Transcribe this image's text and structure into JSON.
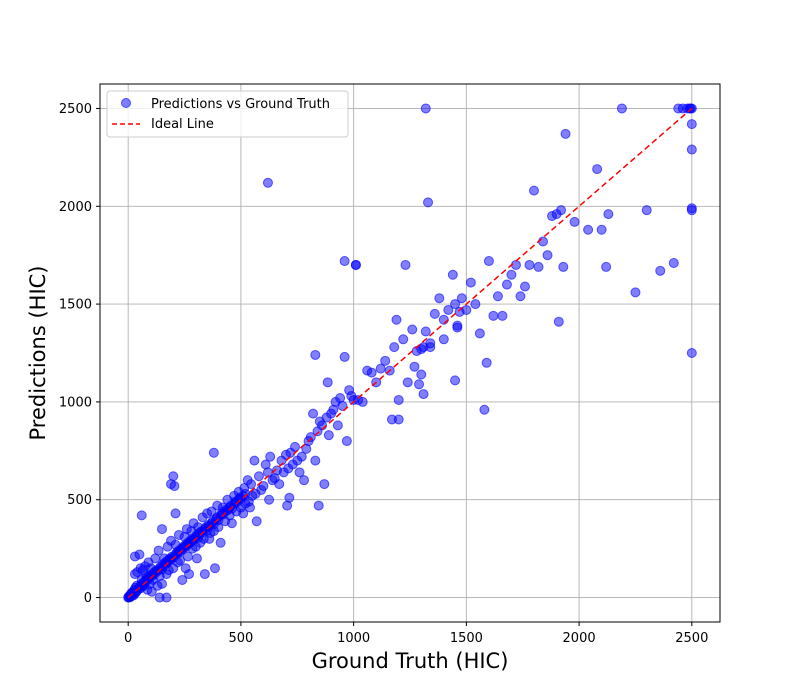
{
  "chart_data": {
    "type": "scatter",
    "xlabel": "Ground Truth (HIC)",
    "ylabel": "Predictions (HIC)",
    "xlim": [
      -125,
      2625
    ],
    "ylim": [
      -125,
      2625
    ],
    "xticks": [
      0,
      500,
      1000,
      1500,
      2000,
      2500
    ],
    "yticks": [
      0,
      500,
      1000,
      1500,
      2000,
      2500
    ],
    "grid": true,
    "legend_position": "top-left",
    "colors": {
      "points": "#0000ff",
      "ideal_line": "#ff0000",
      "grid": "#b0b0b0"
    },
    "ideal_line": {
      "name": "Ideal Line",
      "x": [
        0,
        2500
      ],
      "y": [
        0,
        2500
      ]
    },
    "series": [
      {
        "name": "Predictions vs Ground Truth",
        "points": [
          [
            0,
            0
          ],
          [
            2,
            5
          ],
          [
            5,
            0
          ],
          [
            8,
            10
          ],
          [
            10,
            3
          ],
          [
            12,
            20
          ],
          [
            15,
            8
          ],
          [
            18,
            25
          ],
          [
            20,
            15
          ],
          [
            22,
            30
          ],
          [
            25,
            12
          ],
          [
            28,
            40
          ],
          [
            30,
            22
          ],
          [
            32,
            50
          ],
          [
            35,
            28
          ],
          [
            38,
            60
          ],
          [
            40,
            35
          ],
          [
            45,
            45
          ],
          [
            50,
            55
          ],
          [
            55,
            48
          ],
          [
            60,
            70
          ],
          [
            65,
            62
          ],
          [
            70,
            80
          ],
          [
            75,
            75
          ],
          [
            80,
            90
          ],
          [
            85,
            100
          ],
          [
            90,
            95
          ],
          [
            95,
            110
          ],
          [
            100,
            105
          ],
          [
            105,
            120
          ],
          [
            110,
            115
          ],
          [
            115,
            130
          ],
          [
            120,
            125
          ],
          [
            125,
            140
          ],
          [
            130,
            135
          ],
          [
            140,
            150
          ],
          [
            145,
            160
          ],
          [
            150,
            145
          ],
          [
            155,
            170
          ],
          [
            160,
            165
          ],
          [
            165,
            180
          ],
          [
            170,
            175
          ],
          [
            175,
            190
          ],
          [
            180,
            185
          ],
          [
            185,
            200
          ],
          [
            190,
            195
          ],
          [
            195,
            210
          ],
          [
            200,
            205
          ],
          [
            210,
            220
          ],
          [
            215,
            230
          ],
          [
            220,
            225
          ],
          [
            225,
            240
          ],
          [
            230,
            235
          ],
          [
            235,
            250
          ],
          [
            240,
            245
          ],
          [
            245,
            260
          ],
          [
            250,
            255
          ],
          [
            255,
            270
          ],
          [
            260,
            265
          ],
          [
            265,
            280
          ],
          [
            270,
            275
          ],
          [
            275,
            290
          ],
          [
            280,
            285
          ],
          [
            285,
            300
          ],
          [
            290,
            295
          ],
          [
            300,
            310
          ],
          [
            305,
            320
          ],
          [
            310,
            305
          ],
          [
            315,
            330
          ],
          [
            320,
            325
          ],
          [
            325,
            340
          ],
          [
            330,
            335
          ],
          [
            340,
            350
          ],
          [
            345,
            360
          ],
          [
            350,
            345
          ],
          [
            355,
            370
          ],
          [
            360,
            365
          ],
          [
            370,
            380
          ],
          [
            375,
            390
          ],
          [
            380,
            375
          ],
          [
            390,
            400
          ],
          [
            395,
            410
          ],
          [
            400,
            395
          ],
          [
            410,
            420
          ],
          [
            415,
            430
          ],
          [
            420,
            425
          ],
          [
            430,
            440
          ],
          [
            435,
            450
          ],
          [
            440,
            445
          ],
          [
            450,
            460
          ],
          [
            455,
            470
          ],
          [
            460,
            455
          ],
          [
            470,
            480
          ],
          [
            475,
            490
          ],
          [
            480,
            485
          ],
          [
            490,
            500
          ],
          [
            495,
            510
          ],
          [
            500,
            505
          ],
          [
            510,
            520
          ],
          [
            520,
            530
          ],
          [
            30,
            120
          ],
          [
            40,
            130
          ],
          [
            55,
            150
          ],
          [
            60,
            90
          ],
          [
            65,
            140
          ],
          [
            70,
            60
          ],
          [
            75,
            160
          ],
          [
            80,
            110
          ],
          [
            85,
            40
          ],
          [
            90,
            180
          ],
          [
            95,
            70
          ],
          [
            100,
            150
          ],
          [
            105,
            30
          ],
          [
            110,
            90
          ],
          [
            120,
            200
          ],
          [
            130,
            60
          ],
          [
            135,
            240
          ],
          [
            140,
            110
          ],
          [
            150,
            70
          ],
          [
            160,
            200
          ],
          [
            170,
            120
          ],
          [
            175,
            260
          ],
          [
            180,
            140
          ],
          [
            190,
            290
          ],
          [
            200,
            150
          ],
          [
            210,
            270
          ],
          [
            220,
            180
          ],
          [
            225,
            320
          ],
          [
            230,
            190
          ],
          [
            240,
            90
          ],
          [
            250,
            310
          ],
          [
            255,
            150
          ],
          [
            260,
            350
          ],
          [
            265,
            210
          ],
          [
            270,
            120
          ],
          [
            280,
            340
          ],
          [
            285,
            250
          ],
          [
            290,
            380
          ],
          [
            300,
            260
          ],
          [
            305,
            200
          ],
          [
            310,
            360
          ],
          [
            320,
            280
          ],
          [
            330,
            410
          ],
          [
            335,
            300
          ],
          [
            340,
            120
          ],
          [
            350,
            430
          ],
          [
            360,
            300
          ],
          [
            365,
            330
          ],
          [
            370,
            440
          ],
          [
            380,
            340
          ],
          [
            385,
            150
          ],
          [
            395,
            470
          ],
          [
            400,
            360
          ],
          [
            410,
            280
          ],
          [
            420,
            460
          ],
          [
            430,
            390
          ],
          [
            440,
            500
          ],
          [
            450,
            420
          ],
          [
            460,
            380
          ],
          [
            470,
            520
          ],
          [
            480,
            440
          ],
          [
            490,
            540
          ],
          [
            500,
            460
          ],
          [
            510,
            430
          ],
          [
            515,
            560
          ],
          [
            520,
            480
          ],
          [
            530,
            600
          ],
          [
            535,
            490
          ],
          [
            540,
            460
          ],
          [
            545,
            580
          ],
          [
            550,
            520
          ],
          [
            560,
            700
          ],
          [
            565,
            530
          ],
          [
            570,
            390
          ],
          [
            580,
            620
          ],
          [
            590,
            550
          ],
          [
            600,
            570
          ],
          [
            610,
            680
          ],
          [
            620,
            640
          ],
          [
            625,
            500
          ],
          [
            630,
            720
          ],
          [
            640,
            600
          ],
          [
            650,
            610
          ],
          [
            660,
            650
          ],
          [
            670,
            580
          ],
          [
            680,
            700
          ],
          [
            690,
            640
          ],
          [
            700,
            730
          ],
          [
            705,
            470
          ],
          [
            710,
            660
          ],
          [
            715,
            510
          ],
          [
            720,
            740
          ],
          [
            730,
            680
          ],
          [
            740,
            770
          ],
          [
            750,
            700
          ],
          [
            760,
            640
          ],
          [
            770,
            720
          ],
          [
            780,
            600
          ],
          [
            790,
            760
          ],
          [
            800,
            800
          ],
          [
            810,
            820
          ],
          [
            820,
            940
          ],
          [
            830,
            700
          ],
          [
            840,
            850
          ],
          [
            845,
            470
          ],
          [
            850,
            900
          ],
          [
            860,
            880
          ],
          [
            870,
            580
          ],
          [
            880,
            920
          ],
          [
            885,
            1100
          ],
          [
            890,
            830
          ],
          [
            900,
            940
          ],
          [
            910,
            960
          ],
          [
            920,
            1000
          ],
          [
            930,
            880
          ],
          [
            940,
            1020
          ],
          [
            950,
            980
          ],
          [
            960,
            1230
          ],
          [
            970,
            800
          ],
          [
            980,
            1060
          ],
          [
            990,
            1030
          ],
          [
            1000,
            1010
          ],
          [
            1010,
            1700
          ],
          [
            1020,
            1010
          ],
          [
            1040,
            1000
          ],
          [
            1060,
            1160
          ],
          [
            1080,
            1150
          ],
          [
            1100,
            1100
          ],
          [
            1120,
            1170
          ],
          [
            1140,
            1210
          ],
          [
            1160,
            1160
          ],
          [
            1170,
            910
          ],
          [
            1180,
            1280
          ],
          [
            1190,
            1420
          ],
          [
            1200,
            1010
          ],
          [
            1220,
            1320
          ],
          [
            1240,
            1100
          ],
          [
            1260,
            1370
          ],
          [
            1270,
            1180
          ],
          [
            1280,
            1260
          ],
          [
            1290,
            1090
          ],
          [
            1300,
            1140
          ],
          [
            1310,
            1040
          ],
          [
            1320,
            1360
          ],
          [
            1340,
            1300
          ],
          [
            1360,
            1450
          ],
          [
            1380,
            1530
          ],
          [
            1400,
            1420
          ],
          [
            1420,
            1470
          ],
          [
            1440,
            1650
          ],
          [
            1450,
            1500
          ],
          [
            1460,
            1380
          ],
          [
            1470,
            1460
          ],
          [
            1480,
            1530
          ],
          [
            1500,
            1470
          ],
          [
            1520,
            1610
          ],
          [
            1540,
            1500
          ],
          [
            1560,
            1350
          ],
          [
            1580,
            960
          ],
          [
            1590,
            1200
          ],
          [
            1600,
            1720
          ],
          [
            1620,
            1440
          ],
          [
            1640,
            1540
          ],
          [
            1660,
            1440
          ],
          [
            1680,
            1600
          ],
          [
            1700,
            1650
          ],
          [
            1720,
            1700
          ],
          [
            1740,
            1540
          ],
          [
            1760,
            1590
          ],
          [
            1780,
            1700
          ],
          [
            1800,
            2080
          ],
          [
            1820,
            1690
          ],
          [
            1840,
            1820
          ],
          [
            1860,
            1750
          ],
          [
            1880,
            1950
          ],
          [
            1900,
            1960
          ],
          [
            1910,
            1410
          ],
          [
            1920,
            1980
          ],
          [
            1930,
            1690
          ],
          [
            1940,
            2370
          ],
          [
            1980,
            1920
          ],
          [
            2040,
            1880
          ],
          [
            2080,
            2190
          ],
          [
            2100,
            1880
          ],
          [
            2120,
            1690
          ],
          [
            2130,
            1960
          ],
          [
            2250,
            1560
          ],
          [
            2300,
            1980
          ],
          [
            2360,
            1670
          ],
          [
            2420,
            1710
          ],
          [
            2440,
            2500
          ],
          [
            2460,
            2500
          ],
          [
            2480,
            2500
          ],
          [
            2490,
            2500
          ],
          [
            2495,
            2500
          ],
          [
            2500,
            2500
          ],
          [
            2500,
            2420
          ],
          [
            2500,
            2290
          ],
          [
            2500,
            1990
          ],
          [
            2500,
            1980
          ],
          [
            2500,
            1250
          ],
          [
            2190,
            2500
          ],
          [
            1320,
            2500
          ],
          [
            620,
            2120
          ],
          [
            1330,
            2020
          ],
          [
            960,
            1720
          ],
          [
            1010,
            1700
          ],
          [
            1230,
            1700
          ],
          [
            830,
            1240
          ],
          [
            1450,
            1110
          ],
          [
            1200,
            910
          ],
          [
            1300,
            1270
          ],
          [
            1310,
            1280
          ],
          [
            1400,
            1320
          ],
          [
            1460,
            1390
          ],
          [
            1340,
            1280
          ],
          [
            200,
            620
          ],
          [
            190,
            580
          ],
          [
            205,
            570
          ],
          [
            380,
            740
          ],
          [
            60,
            420
          ],
          [
            150,
            350
          ],
          [
            140,
            0
          ],
          [
            170,
            0
          ],
          [
            210,
            430
          ],
          [
            30,
            210
          ],
          [
            50,
            220
          ]
        ]
      }
    ]
  }
}
